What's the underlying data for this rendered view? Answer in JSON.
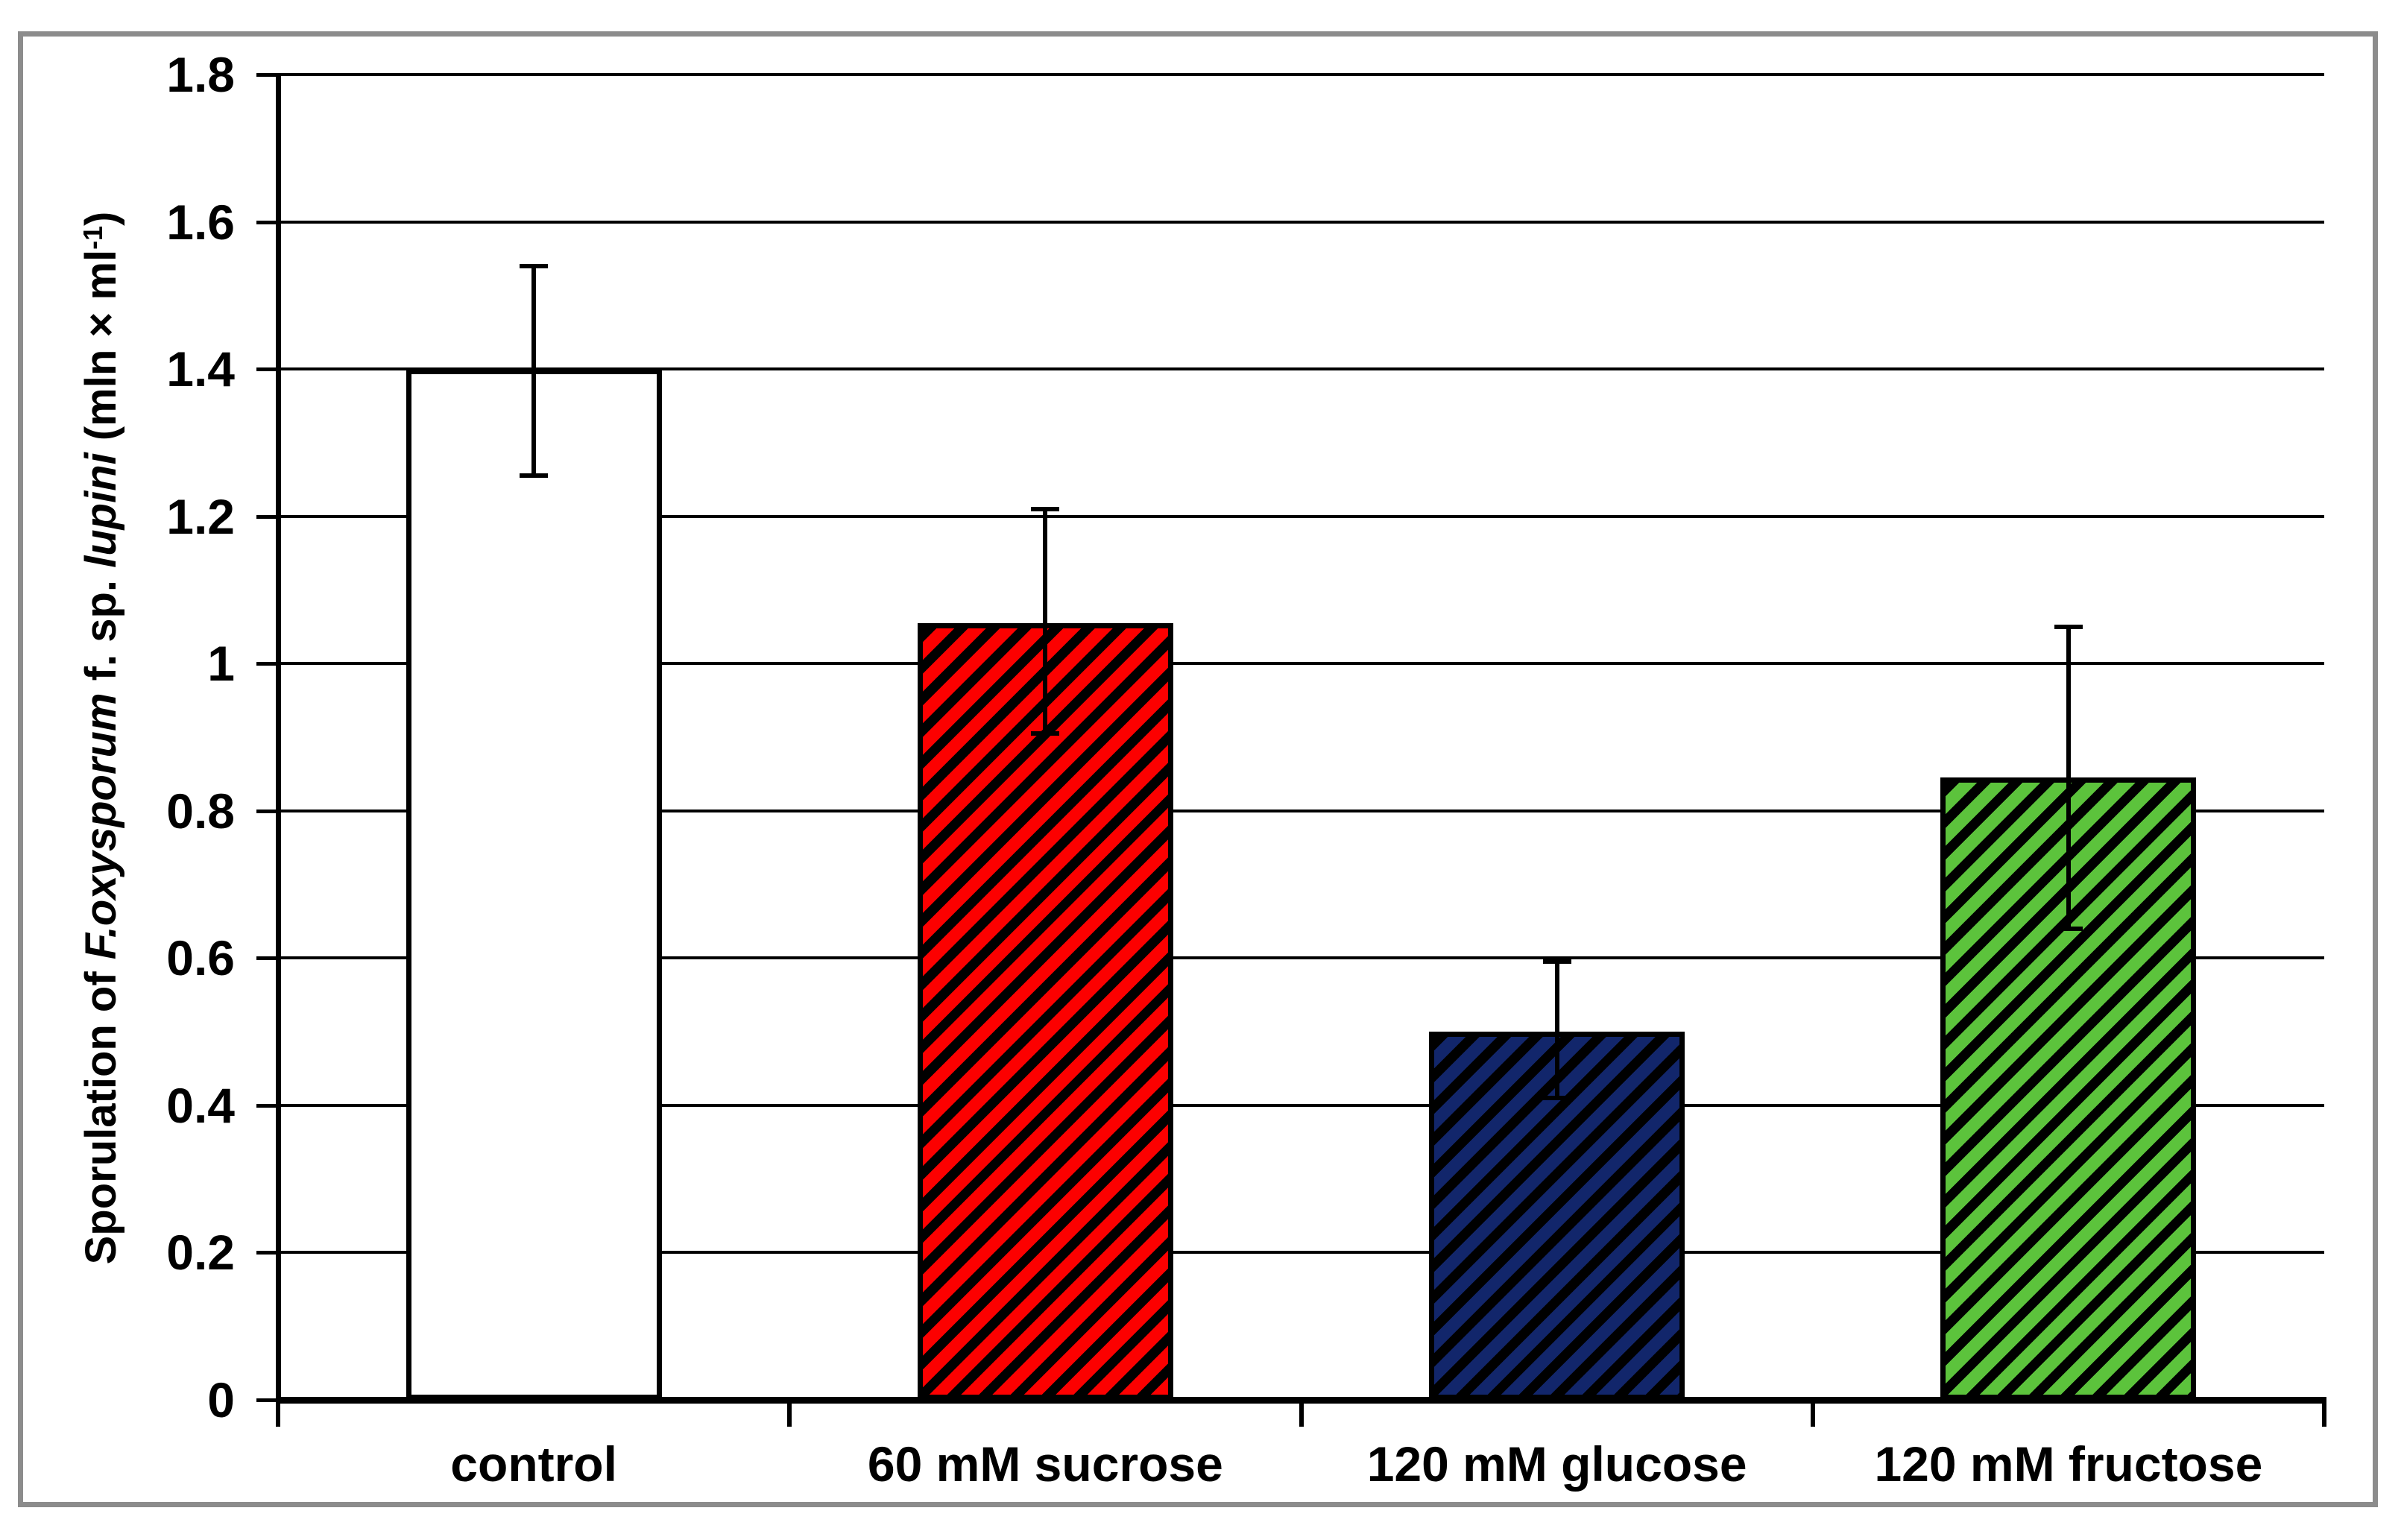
{
  "figure": {
    "background": "#FFFFFF",
    "border_color": "#8C8C8C",
    "axis_color": "#000000"
  },
  "chart_data": {
    "type": "bar",
    "title": "",
    "xlabel": "",
    "ylabel_plain": "Sporulation of F.oxysporum f. sp. lupini (mln × ml-1)",
    "ylabel_parts": [
      {
        "text": "Sporulation of ",
        "style": "normal"
      },
      {
        "text": "F.oxysporum",
        "style": "italic"
      },
      {
        "text": " f. sp. ",
        "style": "normal"
      },
      {
        "text": "lupini",
        "style": "italic"
      },
      {
        "text": " (mln × ml",
        "style": "normal"
      },
      {
        "text": "-1",
        "style": "superscript"
      },
      {
        "text": ")",
        "style": "normal"
      }
    ],
    "categories": [
      "control",
      "60 mM sucrose",
      "120 mM glucose",
      "120 mM fructose"
    ],
    "values": [
      1.4,
      1.055,
      0.5,
      0.845
    ],
    "error_upper": [
      1.54,
      1.21,
      0.595,
      1.05
    ],
    "error_lower": [
      1.255,
      0.905,
      0.41,
      0.64
    ],
    "bars": [
      {
        "label": "control",
        "fill": "#FFFFFF",
        "hatch": false
      },
      {
        "label": "60 mM sucrose",
        "fill": "#FC0000",
        "hatch": true
      },
      {
        "label": "120 mM glucose",
        "fill": "#12266B",
        "hatch": true
      },
      {
        "label": "120 mM fructose",
        "fill": "#5CC33C",
        "hatch": true
      }
    ],
    "hatch_style": {
      "direction": "/",
      "color": "#000000"
    },
    "ylim": [
      0,
      1.8
    ],
    "ytick_step": 0.2,
    "ytick_labels": [
      "0",
      "0.2",
      "0.4",
      "0.6",
      "0.8",
      "1",
      "1.2",
      "1.4",
      "1.6",
      "1.8"
    ],
    "grid": true,
    "legend": "none",
    "bar_width_fraction": 0.5
  }
}
